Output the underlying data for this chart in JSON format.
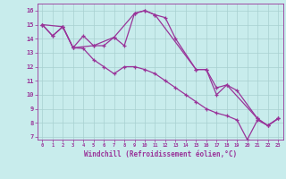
{
  "xlabel": "Windchill (Refroidissement éolien,°C)",
  "bg_color": "#c8ecec",
  "grid_color": "#a8d0d0",
  "line_color": "#993399",
  "xlim": [
    -0.5,
    23.5
  ],
  "ylim": [
    6.8,
    16.5
  ],
  "yticks": [
    7,
    8,
    9,
    10,
    11,
    12,
    13,
    14,
    15,
    16
  ],
  "xticks": [
    0,
    1,
    2,
    3,
    4,
    5,
    6,
    7,
    8,
    9,
    10,
    11,
    12,
    13,
    14,
    15,
    16,
    17,
    18,
    19,
    20,
    21,
    22,
    23
  ],
  "series1_x": [
    0,
    1,
    2,
    3,
    4,
    5,
    6,
    7,
    8,
    9,
    10,
    11,
    12,
    13,
    15,
    16,
    17,
    18,
    19,
    21,
    22,
    23
  ],
  "series1_y": [
    15.0,
    14.2,
    14.85,
    13.35,
    14.2,
    13.5,
    13.5,
    14.1,
    13.5,
    15.8,
    16.0,
    15.7,
    15.5,
    14.0,
    11.8,
    11.8,
    10.0,
    10.7,
    10.3,
    8.3,
    7.8,
    8.3
  ],
  "series2_x": [
    0,
    1,
    2,
    3,
    4,
    5,
    6,
    7,
    8,
    9,
    10,
    11,
    12,
    13,
    14,
    15,
    16,
    17,
    18,
    19,
    20,
    21,
    22,
    23
  ],
  "series2_y": [
    15.0,
    14.2,
    14.85,
    13.35,
    13.3,
    12.5,
    12.0,
    11.5,
    12.0,
    12.0,
    11.8,
    11.5,
    11.0,
    10.5,
    10.0,
    9.5,
    9.0,
    8.7,
    8.5,
    8.2,
    6.8,
    8.2,
    7.8,
    8.3
  ],
  "series3_x": [
    0,
    2,
    3,
    5,
    7,
    9,
    10,
    11,
    15,
    16,
    17,
    18,
    21,
    22,
    23
  ],
  "series3_y": [
    15.0,
    14.85,
    13.35,
    13.5,
    14.1,
    15.8,
    16.0,
    15.7,
    11.8,
    11.8,
    10.5,
    10.7,
    8.3,
    7.8,
    8.3
  ]
}
